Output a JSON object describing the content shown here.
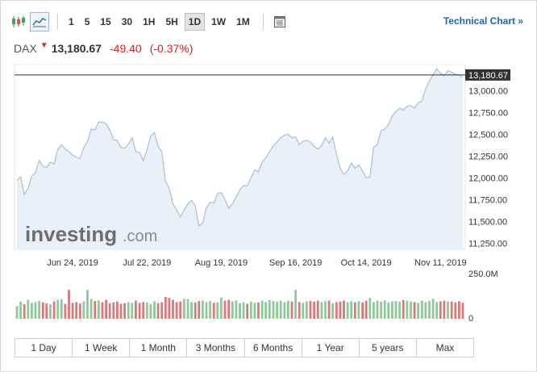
{
  "toolbar": {
    "intervals": [
      "1",
      "5",
      "15",
      "30",
      "1H",
      "5H",
      "1D",
      "1W",
      "1M"
    ],
    "active_interval": "1D",
    "technical_chart_label": "Technical Chart »"
  },
  "quote": {
    "symbol": "DAX",
    "price": "13,180.67",
    "change": "-49.40",
    "change_pct": "(-0.37%)"
  },
  "watermark": {
    "brand": "investing",
    "suffix": ".com"
  },
  "colors": {
    "line": "#a9bfd6",
    "fill": "#e8f0f8",
    "up_bar": "#8fc99a",
    "down_bar": "#d87a7a",
    "negative": "#e02020",
    "link": "#1e63b5"
  },
  "range_buttons": [
    "1 Day",
    "1 Week",
    "1 Month",
    "3 Months",
    "6 Months",
    "1 Year",
    "5 years",
    "Max"
  ],
  "chart_data": {
    "type": "area",
    "title": "",
    "xlabel": "",
    "ylabel": "",
    "x_tick_labels": [
      "Jun 24, 2019",
      "Jul 22, 2019",
      "Aug 19, 2019",
      "Sep 16, 2019",
      "Oct 14, 2019",
      "Nov 11, 2019"
    ],
    "y_ticks": [
      11250,
      11500,
      11750,
      12000,
      12250,
      12500,
      12750,
      13000
    ],
    "y_tick_labels": [
      "11,250.00",
      "11,500.00",
      "11,750.00",
      "12,000.00",
      "12,250.00",
      "12,500.00",
      "12,750.00",
      "13,000.00"
    ],
    "ylim": [
      11180,
      13300
    ],
    "current_price": 13180.67,
    "current_price_label": "13,180.67",
    "dates": [
      "2019-06-03",
      "2019-06-04",
      "2019-06-05",
      "2019-06-06",
      "2019-06-07",
      "2019-06-10",
      "2019-06-11",
      "2019-06-12",
      "2019-06-13",
      "2019-06-14",
      "2019-06-17",
      "2019-06-18",
      "2019-06-19",
      "2019-06-20",
      "2019-06-21",
      "2019-06-24",
      "2019-06-25",
      "2019-06-26",
      "2019-06-27",
      "2019-06-28",
      "2019-07-01",
      "2019-07-02",
      "2019-07-03",
      "2019-07-04",
      "2019-07-05",
      "2019-07-08",
      "2019-07-09",
      "2019-07-10",
      "2019-07-11",
      "2019-07-12",
      "2019-07-15",
      "2019-07-16",
      "2019-07-17",
      "2019-07-18",
      "2019-07-19",
      "2019-07-22",
      "2019-07-23",
      "2019-07-24",
      "2019-07-25",
      "2019-07-26",
      "2019-07-29",
      "2019-07-30",
      "2019-07-31",
      "2019-08-01",
      "2019-08-02",
      "2019-08-05",
      "2019-08-06",
      "2019-08-07",
      "2019-08-08",
      "2019-08-09",
      "2019-08-12",
      "2019-08-13",
      "2019-08-14",
      "2019-08-15",
      "2019-08-16",
      "2019-08-19",
      "2019-08-20",
      "2019-08-21",
      "2019-08-22",
      "2019-08-23",
      "2019-08-26",
      "2019-08-27",
      "2019-08-28",
      "2019-08-29",
      "2019-08-30",
      "2019-09-02",
      "2019-09-03",
      "2019-09-04",
      "2019-09-05",
      "2019-09-06",
      "2019-09-09",
      "2019-09-10",
      "2019-09-11",
      "2019-09-12",
      "2019-09-13",
      "2019-09-16",
      "2019-09-17",
      "2019-09-18",
      "2019-09-19",
      "2019-09-20",
      "2019-09-23",
      "2019-09-24",
      "2019-09-25",
      "2019-09-26",
      "2019-09-27",
      "2019-09-30",
      "2019-10-01",
      "2019-10-02",
      "2019-10-04",
      "2019-10-07",
      "2019-10-08",
      "2019-10-09",
      "2019-10-10",
      "2019-10-11",
      "2019-10-14",
      "2019-10-15",
      "2019-10-16",
      "2019-10-17",
      "2019-10-18",
      "2019-10-21",
      "2019-10-22",
      "2019-10-23",
      "2019-10-24",
      "2019-10-25",
      "2019-10-28",
      "2019-10-29",
      "2019-10-30",
      "2019-10-31",
      "2019-11-01",
      "2019-11-04",
      "2019-11-05",
      "2019-11-06",
      "2019-11-07",
      "2019-11-08",
      "2019-11-11",
      "2019-11-12",
      "2019-11-13",
      "2019-11-14",
      "2019-11-15",
      "2019-11-18",
      "2019-11-19"
    ],
    "values": [
      11970,
      12010,
      11810,
      11880,
      12020,
      12060,
      12200,
      12130,
      12120,
      12180,
      12160,
      12330,
      12380,
      12330,
      12300,
      12260,
      12240,
      12220,
      12350,
      12420,
      12560,
      12550,
      12640,
      12640,
      12620,
      12550,
      12440,
      12430,
      12350,
      12340,
      12390,
      12460,
      12300,
      12290,
      12200,
      12320,
      12480,
      12520,
      12360,
      12300,
      11960,
      11880,
      11700,
      11630,
      11550,
      11630,
      11700,
      11740,
      11680,
      11450,
      11480,
      11660,
      11720,
      11710,
      11820,
      11830,
      11750,
      11650,
      11700,
      11780,
      11860,
      11910,
      11910,
      12000,
      12090,
      12070,
      12180,
      12230,
      12300,
      12370,
      12410,
      12460,
      12490,
      12500,
      12460,
      12470,
      12380,
      12420,
      12430,
      12410,
      12360,
      12330,
      12370,
      12460,
      12400,
      12470,
      12270,
      12110,
      12040,
      12080,
      12170,
      12110,
      12150,
      12080,
      12000,
      12010,
      12350,
      12380,
      12540,
      12560,
      12610,
      12710,
      12760,
      12800,
      12780,
      12820,
      12830,
      12800,
      12860,
      12880,
      13020,
      13110,
      13180,
      13250,
      13200,
      13170,
      13230,
      13210,
      13190,
      13180,
      13150
    ],
    "volume_axis_label": "250.0M",
    "volume_zero_label": "0",
    "volume_max": 250,
    "volume_unit": "M",
    "volumes": [
      70,
      95,
      80,
      105,
      88,
      92,
      98,
      90,
      85,
      80,
      95,
      105,
      108,
      82,
      160,
      88,
      92,
      84,
      96,
      160,
      110,
      98,
      102,
      92,
      105,
      85,
      90,
      95,
      82,
      86,
      92,
      88,
      100,
      88,
      92,
      90,
      82,
      97,
      86,
      91,
      120,
      115,
      105,
      92,
      95,
      110,
      108,
      92,
      90,
      98,
      100,
      92,
      97,
      88,
      90,
      118,
      100,
      105,
      96,
      102,
      86,
      91,
      82,
      95,
      88,
      90,
      100,
      92,
      103,
      98,
      94,
      100,
      92,
      100,
      95,
      160,
      92,
      88,
      96,
      98,
      94,
      100,
      92,
      97,
      100,
      85,
      92,
      95,
      100,
      92,
      96,
      90,
      97,
      90,
      100,
      115,
      92,
      100,
      95,
      102,
      90,
      96,
      98,
      94,
      103,
      100,
      95,
      92,
      88,
      100,
      92,
      98,
      110,
      92,
      96,
      100,
      95,
      95,
      91,
      97,
      88
    ],
    "volume_directions": [
      "u",
      "u",
      "d",
      "u",
      "u",
      "u",
      "u",
      "d",
      "d",
      "u",
      "d",
      "u",
      "u",
      "d",
      "d",
      "d",
      "d",
      "d",
      "u",
      "u",
      "u",
      "d",
      "u",
      "d",
      "d",
      "d",
      "d",
      "d",
      "d",
      "d",
      "u",
      "u",
      "d",
      "d",
      "d",
      "u",
      "u",
      "u",
      "d",
      "d",
      "d",
      "d",
      "d",
      "d",
      "d",
      "u",
      "u",
      "u",
      "d",
      "d",
      "u",
      "u",
      "u",
      "d",
      "u",
      "u",
      "d",
      "d",
      "u",
      "u",
      "u",
      "u",
      "d",
      "u",
      "u",
      "d",
      "u",
      "u",
      "u",
      "u",
      "u",
      "u",
      "u",
      "u",
      "d",
      "u",
      "d",
      "u",
      "u",
      "d",
      "d",
      "d",
      "u",
      "u",
      "d",
      "u",
      "d",
      "d",
      "d",
      "u",
      "u",
      "d",
      "u",
      "d",
      "d",
      "u",
      "u",
      "u",
      "u",
      "u",
      "u",
      "u",
      "u",
      "u",
      "d",
      "u",
      "u",
      "d",
      "u",
      "u",
      "u",
      "u",
      "u",
      "u",
      "d",
      "d",
      "u",
      "d",
      "d",
      "d",
      "d"
    ]
  }
}
